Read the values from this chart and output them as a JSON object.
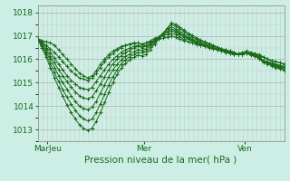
{
  "xlabel": "Pression niveau de la mer( hPa )",
  "bg_color": "#cceee4",
  "grid_color_major": "#b0b0b0",
  "grid_color_minor": "#cccccc",
  "line_color": "#1a6b1a",
  "ylim": [
    1012.5,
    1018.3
  ],
  "yticks": [
    1013,
    1014,
    1015,
    1016,
    1017,
    1018
  ],
  "xtick_labels": [
    "MarJeu",
    "Mer",
    "Ven"
  ],
  "xtick_positions": [
    0.04,
    0.43,
    0.84
  ],
  "series": [
    [
      1016.85,
      1016.8,
      1016.75,
      1016.7,
      1016.6,
      1016.4,
      1016.2,
      1016.0,
      1015.8,
      1015.6,
      1015.4,
      1015.3,
      1015.2,
      1015.3,
      1015.5,
      1015.8,
      1016.0,
      1016.2,
      1016.35,
      1016.45,
      1016.55,
      1016.6,
      1016.65,
      1016.7,
      1016.7,
      1016.65,
      1016.7,
      1016.75,
      1016.8,
      1016.85,
      1016.9,
      1016.95,
      1017.0,
      1016.95,
      1016.85,
      1016.8,
      1016.75,
      1016.7,
      1016.65,
      1016.6,
      1016.55,
      1016.5,
      1016.45,
      1016.4,
      1016.35,
      1016.3,
      1016.25,
      1016.2,
      1016.25,
      1016.3,
      1016.35,
      1016.3,
      1016.25,
      1016.2,
      1016.1,
      1016.0,
      1015.95,
      1015.9,
      1015.85,
      1015.8
    ],
    [
      1016.85,
      1016.75,
      1016.6,
      1016.45,
      1016.3,
      1016.1,
      1015.9,
      1015.7,
      1015.5,
      1015.35,
      1015.2,
      1015.15,
      1015.1,
      1015.2,
      1015.4,
      1015.65,
      1015.9,
      1016.1,
      1016.25,
      1016.4,
      1016.5,
      1016.58,
      1016.63,
      1016.68,
      1016.7,
      1016.65,
      1016.7,
      1016.8,
      1016.9,
      1016.95,
      1017.0,
      1017.05,
      1017.1,
      1017.05,
      1016.95,
      1016.85,
      1016.75,
      1016.7,
      1016.65,
      1016.6,
      1016.55,
      1016.5,
      1016.45,
      1016.4,
      1016.35,
      1016.3,
      1016.25,
      1016.2,
      1016.2,
      1016.25,
      1016.3,
      1016.25,
      1016.2,
      1016.15,
      1016.1,
      1016.0,
      1015.95,
      1015.9,
      1015.85,
      1015.8
    ],
    [
      1016.85,
      1016.7,
      1016.5,
      1016.3,
      1016.05,
      1015.8,
      1015.55,
      1015.3,
      1015.1,
      1014.95,
      1014.8,
      1014.75,
      1014.7,
      1014.8,
      1015.05,
      1015.3,
      1015.55,
      1015.8,
      1016.0,
      1016.15,
      1016.3,
      1016.4,
      1016.48,
      1016.55,
      1016.6,
      1016.55,
      1016.6,
      1016.7,
      1016.85,
      1016.95,
      1017.05,
      1017.15,
      1017.2,
      1017.15,
      1017.05,
      1016.95,
      1016.85,
      1016.78,
      1016.7,
      1016.65,
      1016.6,
      1016.55,
      1016.5,
      1016.45,
      1016.4,
      1016.35,
      1016.3,
      1016.25,
      1016.2,
      1016.25,
      1016.3,
      1016.25,
      1016.2,
      1016.1,
      1015.95,
      1015.9,
      1015.85,
      1015.8,
      1015.75,
      1015.7
    ],
    [
      1016.85,
      1016.65,
      1016.4,
      1016.15,
      1015.85,
      1015.55,
      1015.3,
      1015.05,
      1014.82,
      1014.6,
      1014.45,
      1014.35,
      1014.3,
      1014.4,
      1014.65,
      1014.95,
      1015.25,
      1015.55,
      1015.8,
      1016.0,
      1016.15,
      1016.28,
      1016.38,
      1016.48,
      1016.55,
      1016.5,
      1016.55,
      1016.65,
      1016.8,
      1016.95,
      1017.1,
      1017.2,
      1017.28,
      1017.22,
      1017.1,
      1017.0,
      1016.9,
      1016.82,
      1016.74,
      1016.67,
      1016.6,
      1016.55,
      1016.5,
      1016.45,
      1016.4,
      1016.35,
      1016.3,
      1016.25,
      1016.2,
      1016.22,
      1016.27,
      1016.25,
      1016.2,
      1016.1,
      1015.95,
      1015.88,
      1015.82,
      1015.75,
      1015.7,
      1015.65
    ],
    [
      1016.85,
      1016.6,
      1016.3,
      1016.0,
      1015.65,
      1015.3,
      1015.0,
      1014.72,
      1014.45,
      1014.2,
      1014.0,
      1013.9,
      1013.85,
      1013.95,
      1014.2,
      1014.55,
      1014.9,
      1015.25,
      1015.55,
      1015.78,
      1015.97,
      1016.12,
      1016.22,
      1016.32,
      1016.42,
      1016.38,
      1016.45,
      1016.6,
      1016.78,
      1016.95,
      1017.12,
      1017.28,
      1017.38,
      1017.3,
      1017.18,
      1017.07,
      1016.95,
      1016.85,
      1016.78,
      1016.7,
      1016.63,
      1016.57,
      1016.5,
      1016.45,
      1016.4,
      1016.35,
      1016.3,
      1016.25,
      1016.2,
      1016.22,
      1016.27,
      1016.22,
      1016.18,
      1016.08,
      1015.92,
      1015.85,
      1015.78,
      1015.72,
      1015.67,
      1015.62
    ],
    [
      1016.85,
      1016.55,
      1016.2,
      1015.82,
      1015.42,
      1015.05,
      1014.7,
      1014.38,
      1014.08,
      1013.82,
      1013.6,
      1013.45,
      1013.37,
      1013.45,
      1013.72,
      1014.1,
      1014.5,
      1014.9,
      1015.25,
      1015.55,
      1015.8,
      1015.98,
      1016.1,
      1016.2,
      1016.3,
      1016.27,
      1016.35,
      1016.52,
      1016.72,
      1016.92,
      1017.12,
      1017.32,
      1017.48,
      1017.42,
      1017.3,
      1017.18,
      1017.05,
      1016.95,
      1016.85,
      1016.78,
      1016.7,
      1016.63,
      1016.57,
      1016.5,
      1016.45,
      1016.4,
      1016.35,
      1016.3,
      1016.22,
      1016.22,
      1016.27,
      1016.2,
      1016.15,
      1016.05,
      1015.9,
      1015.82,
      1015.75,
      1015.68,
      1015.62,
      1015.55
    ],
    [
      1016.85,
      1016.5,
      1016.1,
      1015.65,
      1015.22,
      1014.8,
      1014.42,
      1014.05,
      1013.72,
      1013.45,
      1013.2,
      1013.05,
      1012.97,
      1013.05,
      1013.35,
      1013.72,
      1014.15,
      1014.58,
      1015.0,
      1015.35,
      1015.62,
      1015.83,
      1015.98,
      1016.08,
      1016.18,
      1016.15,
      1016.22,
      1016.42,
      1016.65,
      1016.88,
      1017.1,
      1017.32,
      1017.55,
      1017.5,
      1017.38,
      1017.25,
      1017.12,
      1017.02,
      1016.92,
      1016.82,
      1016.75,
      1016.67,
      1016.6,
      1016.52,
      1016.45,
      1016.4,
      1016.35,
      1016.3,
      1016.2,
      1016.2,
      1016.25,
      1016.18,
      1016.12,
      1016.02,
      1015.87,
      1015.8,
      1015.72,
      1015.65,
      1015.58,
      1015.52
    ]
  ]
}
